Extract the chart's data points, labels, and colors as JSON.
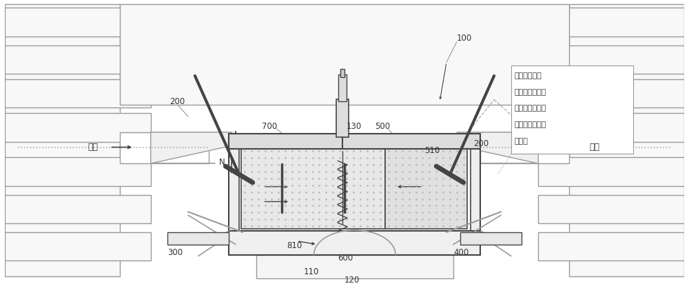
{
  "bg_color": "#ffffff",
  "lc": "#999999",
  "dlc": "#444444",
  "tc": "#333333",
  "fig_width": 10.0,
  "fig_height": 4.15,
  "annotation_lines": [
    "高速状态下，",
    "可变压缩活塞的",
    "伸出已高于压缩",
    "活塞与燃烧室的",
    "结合面"
  ]
}
